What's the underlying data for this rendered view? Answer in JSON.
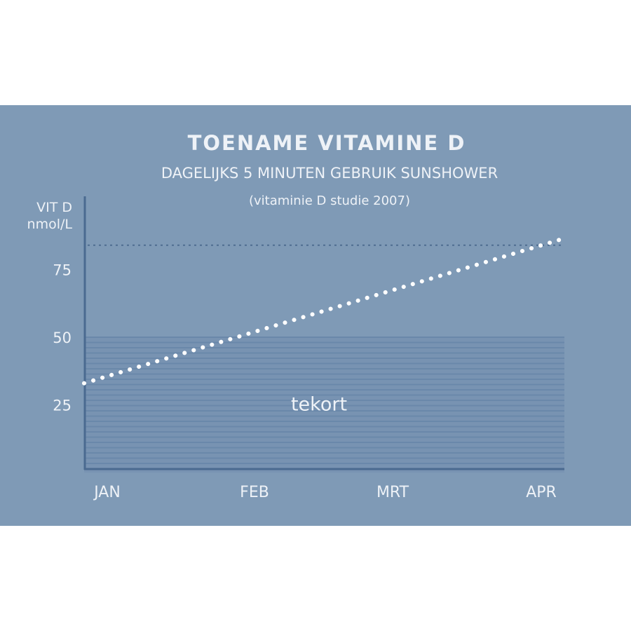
{
  "chart_data": {
    "type": "line",
    "title": "TOENAME VITAMINE D",
    "subtitle": "DAGELIJKS 5 MINUTEN GEBRUIK SUNSHOWER",
    "note": "(vitaminie D studie 2007)",
    "ylabel": [
      "VIT D",
      "nmol/L"
    ],
    "yticks": [
      "75",
      "50",
      "25"
    ],
    "ylim": [
      0,
      90
    ],
    "categories": [
      "JAN",
      "FEB",
      "MRT",
      "APR"
    ],
    "series": [
      {
        "x": [
          "JAN",
          "APR"
        ],
        "values": [
          33,
          86
        ],
        "style": "white dotted"
      }
    ],
    "reference_line": {
      "value": 84,
      "style": "dark dotted"
    },
    "band": {
      "label": "tekort",
      "from": 0,
      "to": 50,
      "style": "horizontal hatching"
    },
    "colors": {
      "background": "#7f9ab6",
      "band": "#6a88aa",
      "axis": "#4a6a90",
      "line": "#ffffff"
    }
  }
}
